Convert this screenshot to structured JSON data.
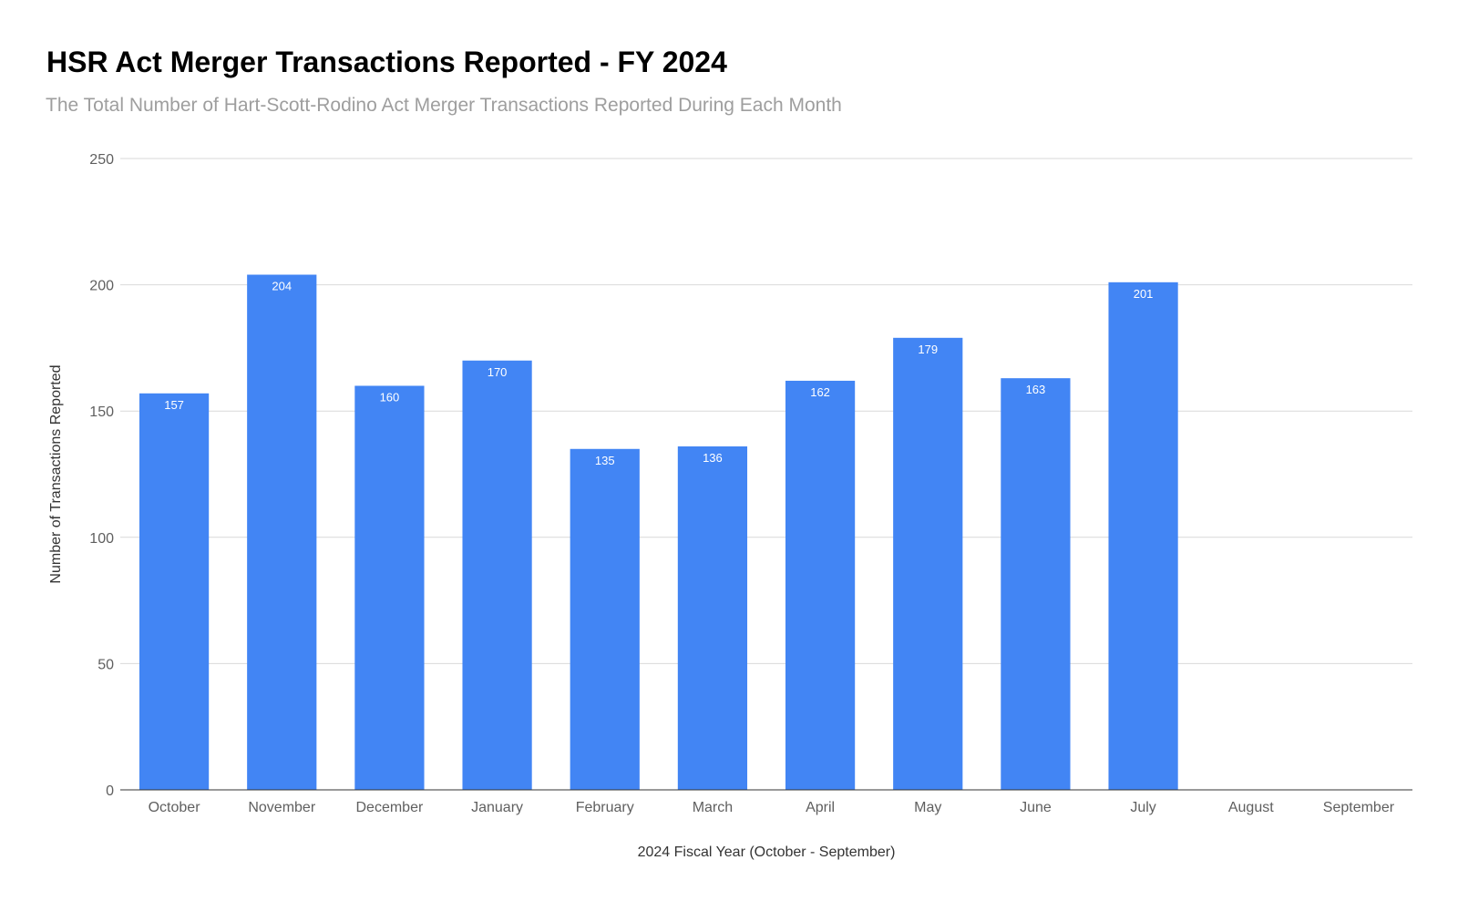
{
  "chart_data": {
    "type": "bar",
    "title": "HSR Act Merger Transactions Reported - FY 2024",
    "subtitle": "The Total Number of Hart-Scott-Rodino Act Merger Transactions Reported During Each Month",
    "xlabel": "2024 Fiscal Year (October - September)",
    "ylabel": "Number of Transactions Reported",
    "categories": [
      "October",
      "November",
      "December",
      "January",
      "February",
      "March",
      "April",
      "May",
      "June",
      "July",
      "August",
      "September"
    ],
    "values": [
      157,
      204,
      160,
      170,
      135,
      136,
      162,
      179,
      163,
      201,
      null,
      null
    ],
    "ylim": [
      0,
      250
    ],
    "yticks": [
      0,
      50,
      100,
      150,
      200,
      250
    ],
    "grid": true,
    "legend": "none",
    "data_labels": true,
    "bar_color": "#4285f4"
  }
}
